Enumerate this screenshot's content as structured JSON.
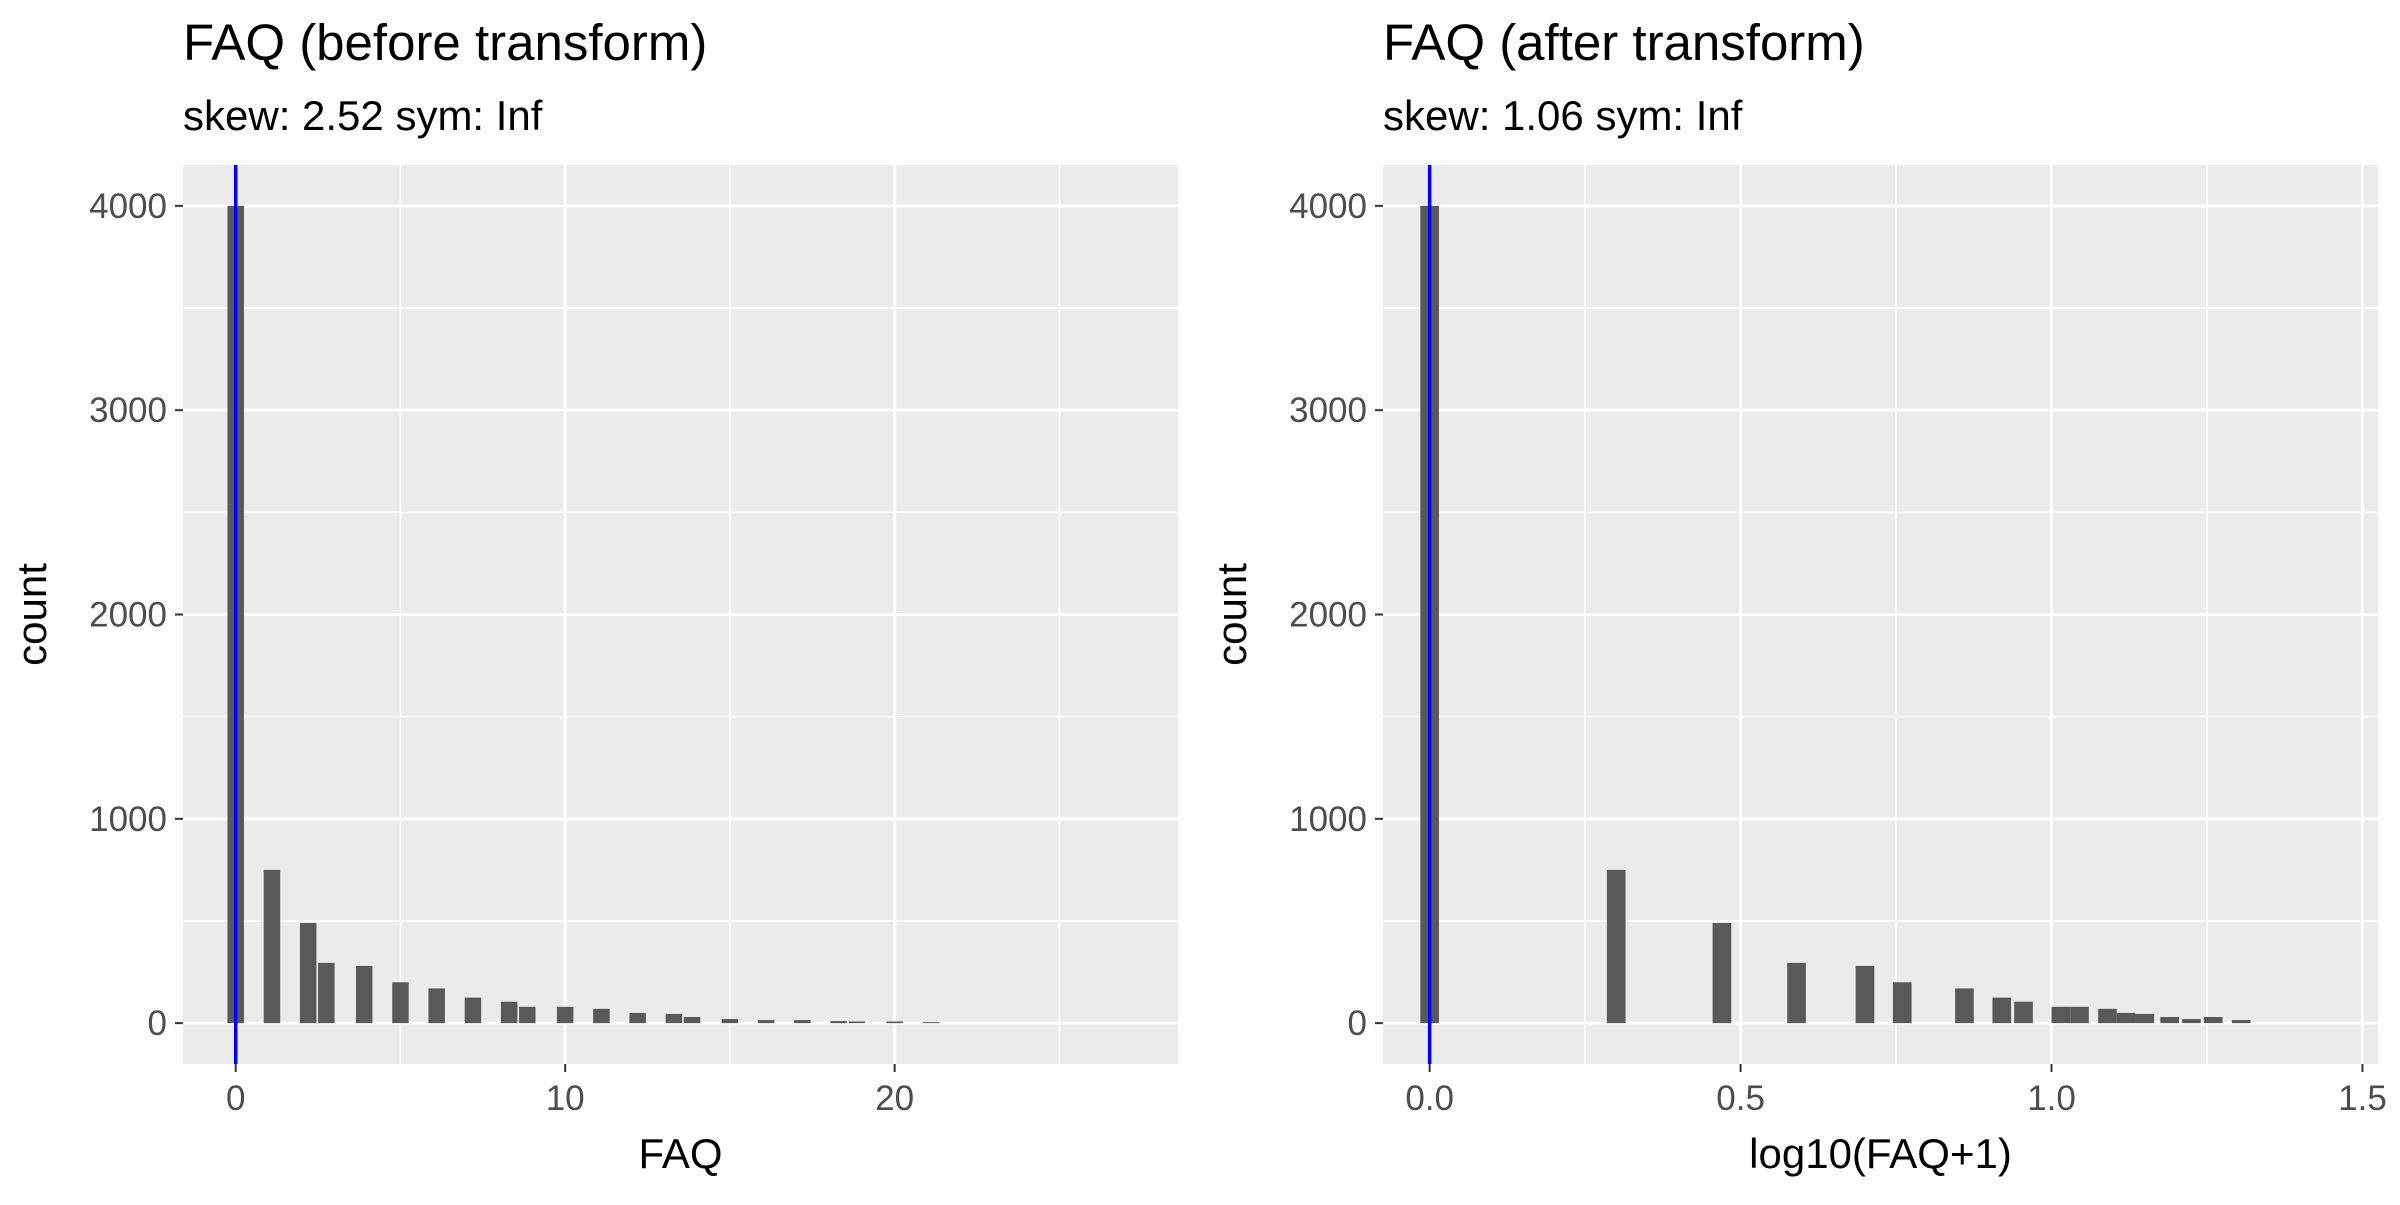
{
  "chart_data": [
    {
      "type": "bar",
      "title": "FAQ (before transform)",
      "subtitle": "skew: 2.52 sym: Inf",
      "xlabel": "FAQ",
      "ylabel": "count",
      "xlim": [
        -1.6,
        28.6
      ],
      "ylim": [
        -200,
        4200
      ],
      "x_ticks": [
        0,
        10,
        20
      ],
      "x_tick_labels": [
        "0",
        "10",
        "20"
      ],
      "y_ticks": [
        0,
        1000,
        2000,
        3000,
        4000
      ],
      "y_tick_labels": [
        "0",
        "1000",
        "2000",
        "3000",
        "4000"
      ],
      "bar_width": 0.5,
      "bar_color": "#595959",
      "background": "#ebebeb",
      "grid": true,
      "vline": {
        "x": 0,
        "color": "#0000ff"
      },
      "bins": [
        {
          "x": 0,
          "count": 4000
        },
        {
          "x": 1.1,
          "count": 750
        },
        {
          "x": 2.2,
          "count": 490
        },
        {
          "x": 2.75,
          "count": 295
        },
        {
          "x": 3.9,
          "count": 280
        },
        {
          "x": 5.0,
          "count": 200
        },
        {
          "x": 6.1,
          "count": 170
        },
        {
          "x": 7.2,
          "count": 125
        },
        {
          "x": 8.3,
          "count": 105
        },
        {
          "x": 8.85,
          "count": 80
        },
        {
          "x": 10.0,
          "count": 80
        },
        {
          "x": 11.1,
          "count": 70
        },
        {
          "x": 12.2,
          "count": 50
        },
        {
          "x": 13.3,
          "count": 45
        },
        {
          "x": 13.85,
          "count": 30
        },
        {
          "x": 15.0,
          "count": 20
        },
        {
          "x": 16.1,
          "count": 15
        },
        {
          "x": 17.2,
          "count": 15
        },
        {
          "x": 18.3,
          "count": 10
        },
        {
          "x": 18.85,
          "count": 8
        },
        {
          "x": 20.0,
          "count": 8
        },
        {
          "x": 21.1,
          "count": 5
        }
      ]
    },
    {
      "type": "bar",
      "title": "FAQ (after transform)",
      "subtitle": "skew: 1.06 sym: Inf",
      "xlabel": "log10(FAQ+1)",
      "ylabel": "count",
      "xlim": [
        -0.075,
        1.525
      ],
      "ylim": [
        -200,
        4200
      ],
      "x_ticks": [
        0,
        0.5,
        1.0,
        1.5
      ],
      "x_tick_labels": [
        "0.0",
        "0.5",
        "1.0",
        "1.5"
      ],
      "y_ticks": [
        0,
        1000,
        2000,
        3000,
        4000
      ],
      "y_tick_labels": [
        "0",
        "1000",
        "2000",
        "3000",
        "4000"
      ],
      "bar_width": 0.03,
      "bar_color": "#595959",
      "background": "#ebebeb",
      "grid": true,
      "vline": {
        "x": 0,
        "color": "#0000ff"
      },
      "bins": [
        {
          "x": 0,
          "count": 4000
        },
        {
          "x": 0.3,
          "count": 750
        },
        {
          "x": 0.47,
          "count": 490
        },
        {
          "x": 0.59,
          "count": 295
        },
        {
          "x": 0.7,
          "count": 280
        },
        {
          "x": 0.76,
          "count": 200
        },
        {
          "x": 0.86,
          "count": 170
        },
        {
          "x": 0.92,
          "count": 125
        },
        {
          "x": 0.955,
          "count": 105
        },
        {
          "x": 1.015,
          "count": 80
        },
        {
          "x": 1.045,
          "count": 80
        },
        {
          "x": 1.09,
          "count": 70
        },
        {
          "x": 1.12,
          "count": 50
        },
        {
          "x": 1.15,
          "count": 45
        },
        {
          "x": 1.19,
          "count": 30
        },
        {
          "x": 1.225,
          "count": 20
        },
        {
          "x": 1.26,
          "count": 30
        },
        {
          "x": 1.305,
          "count": 15
        }
      ]
    }
  ]
}
